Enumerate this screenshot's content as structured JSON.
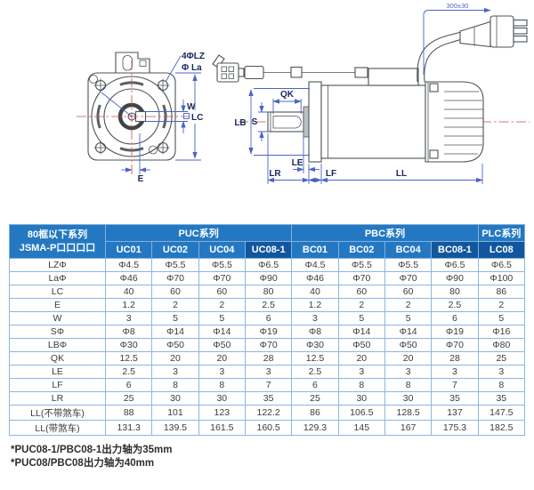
{
  "diagram": {
    "labels": {
      "mounting_holes": "4ΦLZ",
      "pilot_dia": "Φ La",
      "w": "W",
      "lc": "LC",
      "e": "E",
      "qk": "QK",
      "lb": "LB",
      "s": "S",
      "le": "LE",
      "lr": "LR",
      "lf": "LF",
      "ll": "LL",
      "cable_length": "300±30"
    },
    "colors": {
      "dimension": "#4a64c8",
      "centerline": "#c94b4b",
      "outline": "#4c5257"
    }
  },
  "table": {
    "header": {
      "row_label_title": "80框以下系列",
      "row_label_subtitle": "JSMA-P口口口口",
      "groups": [
        {
          "label": "PUC系列",
          "span": 4
        },
        {
          "label": "PBC系列",
          "span": 4
        },
        {
          "label": "PLC系列",
          "span": 1
        }
      ],
      "columns": [
        "UC01",
        "UC02",
        "UC04",
        "UC08-1",
        "BC01",
        "BC02",
        "BC04",
        "BC08-1",
        "LC08"
      ],
      "highlighted_columns": [
        "UC08-1",
        "BC08-1",
        "LC08"
      ],
      "colors": {
        "header_blue": "#2478c2",
        "highlight_blue": "#12579e"
      }
    },
    "rows": [
      {
        "label": "LZΦ",
        "values": [
          "Φ4.5",
          "Φ5.5",
          "Φ5.5",
          "Φ6.5",
          "Φ4.5",
          "Φ5.5",
          "Φ5.5",
          "Φ6.5",
          "Φ6.5"
        ]
      },
      {
        "label": "LaΦ",
        "values": [
          "Φ46",
          "Φ70",
          "Φ70",
          "Φ90",
          "Φ46",
          "Φ70",
          "Φ70",
          "Φ90",
          "Φ100"
        ]
      },
      {
        "label": "LC",
        "values": [
          "40",
          "60",
          "60",
          "80",
          "40",
          "60",
          "60",
          "80",
          "86"
        ]
      },
      {
        "label": "E",
        "values": [
          "1.2",
          "2",
          "2",
          "2.5",
          "1.2",
          "2",
          "2",
          "2.5",
          "2"
        ]
      },
      {
        "label": "W",
        "values": [
          "3",
          "5",
          "5",
          "6",
          "3",
          "5",
          "5",
          "6",
          "5"
        ]
      },
      {
        "label": "SΦ",
        "values": [
          "Φ8",
          "Φ14",
          "Φ14",
          "Φ19",
          "Φ8",
          "Φ14",
          "Φ14",
          "Φ19",
          "Φ16"
        ]
      },
      {
        "label": "LBΦ",
        "values": [
          "Φ30",
          "Φ50",
          "Φ50",
          "Φ70",
          "Φ30",
          "Φ50",
          "Φ50",
          "Φ70",
          "Φ80"
        ]
      },
      {
        "label": "QK",
        "values": [
          "12.5",
          "20",
          "20",
          "28",
          "12.5",
          "20",
          "20",
          "28",
          "25"
        ]
      },
      {
        "label": "LE",
        "values": [
          "2.5",
          "3",
          "3",
          "3",
          "2.5",
          "3",
          "3",
          "3",
          "3"
        ]
      },
      {
        "label": "LF",
        "values": [
          "6",
          "8",
          "8",
          "7",
          "6",
          "8",
          "8",
          "7",
          "8"
        ]
      },
      {
        "label": "LR",
        "values": [
          "25",
          "30",
          "30",
          "35",
          "25",
          "30",
          "30",
          "35",
          "35"
        ]
      },
      {
        "label": "LL(不带煞车)",
        "values": [
          "88",
          "101",
          "123",
          "122.2",
          "86",
          "106.5",
          "128.5",
          "137",
          "147.5"
        ]
      },
      {
        "label": "LL(带煞车)",
        "values": [
          "131.3",
          "139.5",
          "161.5",
          "160.5",
          "129.3",
          "145",
          "167",
          "175.3",
          "182.5"
        ]
      }
    ]
  },
  "footnotes": [
    "*PUC08-1/PBC08-1出力轴为35mm",
    "*PUC08/PBC08出力轴为40mm"
  ]
}
